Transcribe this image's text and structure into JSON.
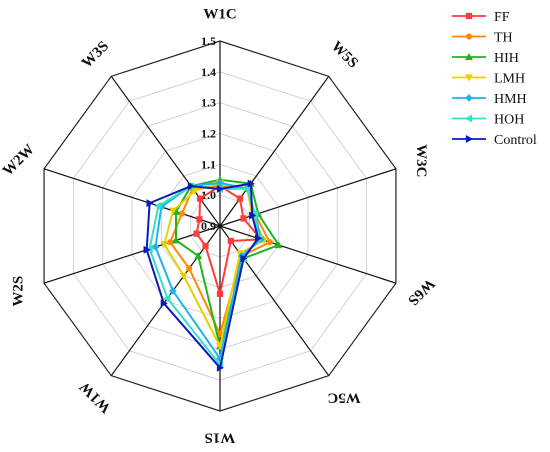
{
  "chart_data": {
    "type": "radar",
    "axes": [
      "W1C",
      "W5S",
      "W3C",
      "W6S",
      "W5C",
      "W1S",
      "W1W",
      "W2S",
      "W2W",
      "W3S"
    ],
    "axis_label_rotation": [
      0,
      45,
      90,
      135,
      180,
      180,
      225,
      270,
      315,
      315
    ],
    "rticks": [
      "0.9",
      "1.0",
      "1.1",
      "1.2",
      "1.3",
      "1.4",
      "1.5"
    ],
    "rlim": [
      0.9,
      1.5
    ],
    "grid": true,
    "legend_position": "top-right",
    "series": [
      {
        "name": "FF",
        "color": "#ff3b3b",
        "marker": "square",
        "values": [
          1.03,
          1.01,
          0.98,
          1.04,
          0.96,
          1.12,
          0.98,
          0.98,
          0.97,
          1.01
        ]
      },
      {
        "name": "TH",
        "color": "#ff8a00",
        "marker": "circle",
        "values": [
          1.03,
          1.05,
          1.02,
          1.07,
          1.02,
          1.25,
          1.07,
          1.07,
          1.03,
          1.05
        ]
      },
      {
        "name": "HIH",
        "color": "#1fb51f",
        "marker": "triangle",
        "values": [
          1.05,
          1.07,
          1.03,
          1.1,
          1.03,
          1.29,
          1.02,
          1.05,
          1.05,
          1.06
        ]
      },
      {
        "name": "LMH",
        "color": "#e8d000",
        "marker": "tri-down",
        "values": [
          1.04,
          1.05,
          1.01,
          1.05,
          1.01,
          1.29,
          1.1,
          1.09,
          1.06,
          1.04
        ]
      },
      {
        "name": "HMH",
        "color": "#1fb3ee",
        "marker": "diamond",
        "values": [
          1.04,
          1.05,
          1.02,
          1.04,
          1.02,
          1.33,
          1.16,
          1.12,
          1.1,
          1.06
        ]
      },
      {
        "name": "HOH",
        "color": "#33e0c8",
        "marker": "tri-left",
        "values": [
          1.02,
          1.05,
          1.02,
          1.03,
          1.03,
          1.35,
          1.19,
          1.14,
          1.11,
          1.06
        ]
      },
      {
        "name": "Control",
        "color": "#0a1cb8",
        "marker": "tri-right",
        "values": [
          1.02,
          1.07,
          1.01,
          1.03,
          1.03,
          1.36,
          1.21,
          1.15,
          1.14,
          1.06
        ]
      }
    ]
  }
}
